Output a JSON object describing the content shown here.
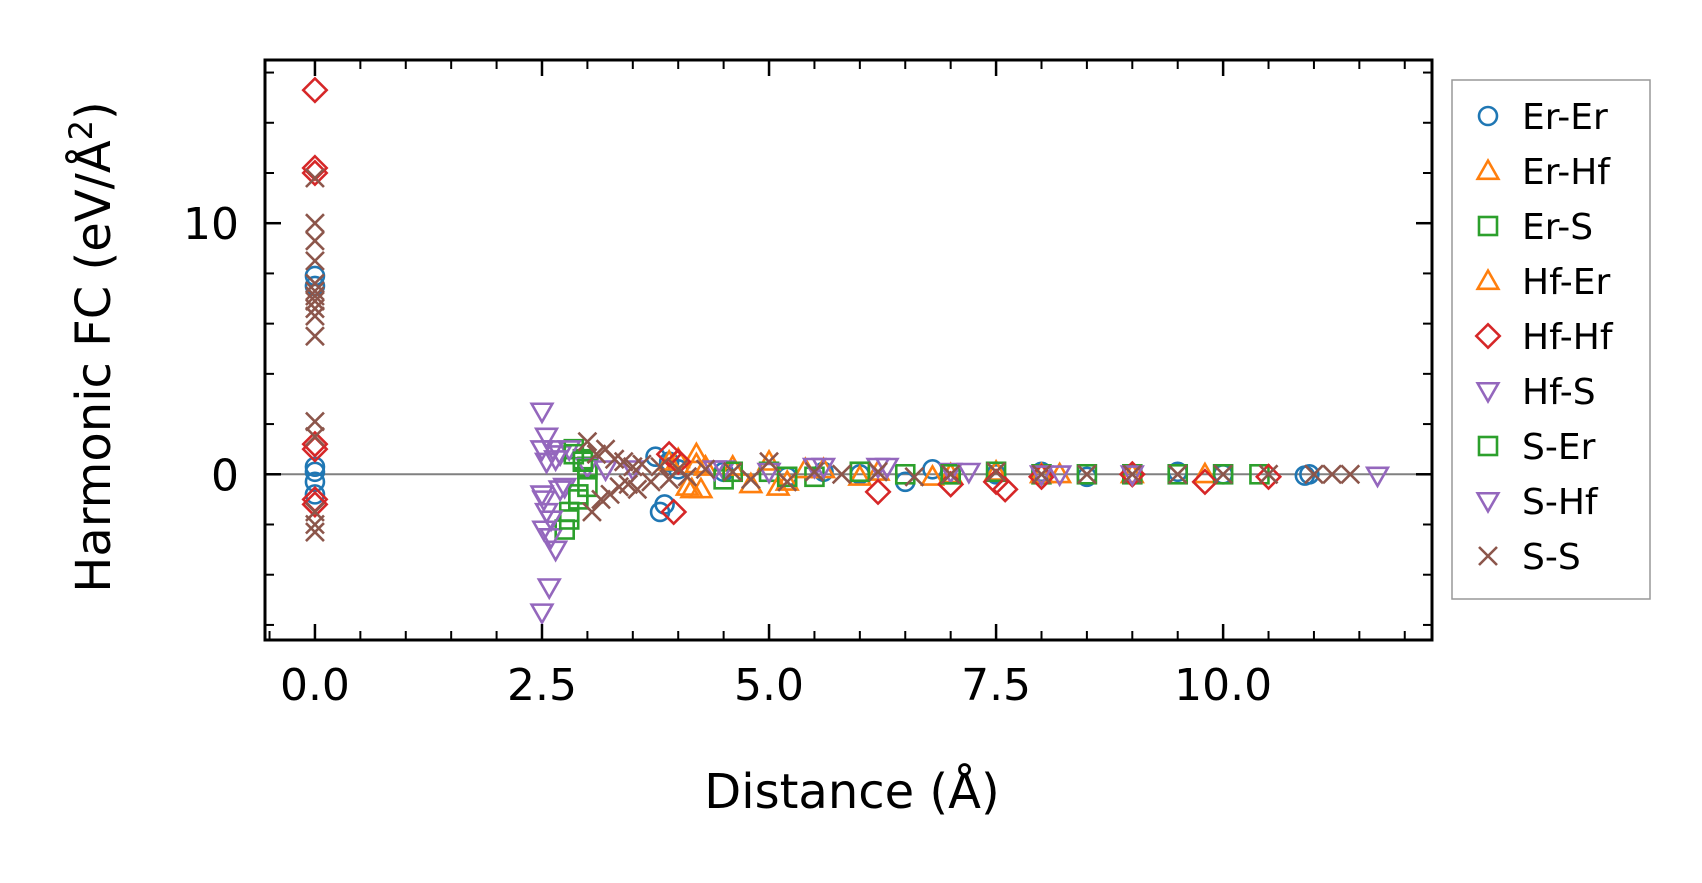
{
  "chart_data": {
    "type": "scatter",
    "title": "",
    "xlabel": "Distance (Å)",
    "ylabel_main": "Harmonic FC (eV/Å",
    "ylabel_sup": "2",
    "ylabel_close": ")",
    "xlim": [
      -0.55,
      12.3
    ],
    "ylim": [
      -6.6,
      16.5
    ],
    "xticks": [
      0.0,
      2.5,
      5.0,
      7.5,
      10.0
    ],
    "xtick_labels": [
      "0.0",
      "2.5",
      "5.0",
      "7.5",
      "10.0"
    ],
    "yticks": [
      0,
      10
    ],
    "ytick_labels": [
      "0",
      "10"
    ],
    "x_minor_step": 0.5,
    "y_minor_step": 2,
    "zero_line": true,
    "grid": false,
    "legend_position": "outside-right",
    "series": [
      {
        "name": "Er-Er",
        "marker": "circle",
        "color": "#1f77b4",
        "x": [
          0.0,
          0.0,
          0.0,
          0.0,
          0.0,
          0.0,
          3.75,
          3.8,
          3.85,
          3.9,
          4.0,
          4.5,
          5.2,
          5.6,
          6.0,
          6.5,
          6.8,
          7.5,
          8.0,
          8.5,
          9.0,
          9.5,
          10.0,
          10.9,
          10.95
        ],
        "y": [
          7.9,
          7.5,
          0.3,
          0.1,
          -0.3,
          -0.8,
          0.7,
          -1.5,
          -1.2,
          0.5,
          0.2,
          0.1,
          -0.1,
          0.1,
          0.0,
          -0.3,
          0.2,
          0.0,
          0.1,
          -0.1,
          0.0,
          0.1,
          0.0,
          -0.05,
          0.0
        ]
      },
      {
        "name": "Er-Hf",
        "marker": "triangle-up",
        "color": "#ff7f0e",
        "x": [
          3.9,
          4.0,
          4.1,
          4.2,
          4.25,
          4.3,
          4.8,
          5.0,
          5.2,
          5.6,
          6.2,
          6.8,
          7.5,
          8.2,
          9.0,
          9.8
        ],
        "y": [
          0.5,
          0.6,
          -0.5,
          0.8,
          -0.6,
          0.3,
          -0.4,
          0.5,
          -0.3,
          0.2,
          0.1,
          -0.1,
          0.1,
          0.0,
          0.0,
          0.0
        ]
      },
      {
        "name": "Er-S",
        "marker": "square",
        "color": "#2ca02c",
        "x": [
          2.75,
          2.8,
          2.85,
          2.9,
          2.95,
          3.0,
          3.0,
          4.5,
          5.0,
          5.5,
          6.0,
          6.5,
          7.0,
          7.5,
          8.0,
          9.0,
          10.0,
          10.4
        ],
        "y": [
          -2.2,
          -1.5,
          1.0,
          -1.0,
          0.6,
          -0.5,
          0.3,
          -0.2,
          0.1,
          -0.1,
          0.1,
          0.0,
          0.0,
          0.1,
          0.0,
          0.0,
          0.0,
          0.0
        ]
      },
      {
        "name": "Hf-Er",
        "marker": "triangle-up",
        "color": "#ff7f0e",
        "x": [
          4.15,
          4.2,
          4.6,
          5.1,
          5.4,
          6.0,
          7.0,
          8.0
        ],
        "y": [
          -0.6,
          0.4,
          0.3,
          -0.5,
          0.2,
          -0.1,
          0.0,
          0.0
        ]
      },
      {
        "name": "Hf-Hf",
        "marker": "diamond",
        "color": "#d62728",
        "x": [
          0.0,
          0.0,
          0.0,
          0.0,
          0.0,
          0.0,
          0.0,
          3.9,
          3.95,
          4.0,
          6.2,
          7.0,
          7.5,
          7.6,
          8.0,
          9.0,
          9.8,
          10.5
        ],
        "y": [
          15.3,
          12.2,
          12.0,
          1.2,
          1.0,
          -1.0,
          -1.2,
          0.8,
          -1.5,
          0.5,
          -0.7,
          -0.4,
          -0.3,
          -0.6,
          -0.1,
          0.0,
          -0.3,
          -0.1
        ]
      },
      {
        "name": "Hf-S",
        "marker": "triangle-down",
        "color": "#9467bd",
        "x": [
          2.5,
          2.5,
          2.5,
          2.52,
          2.52,
          2.55,
          2.55,
          2.58,
          2.6,
          2.62,
          2.65,
          2.7,
          2.75,
          2.8,
          3.0,
          3.5,
          4.5,
          5.0,
          5.5,
          6.2,
          7.0,
          8.0,
          9.0,
          11.7
        ],
        "y": [
          -5.5,
          2.5,
          1.0,
          -1.0,
          -2.2,
          0.5,
          -1.5,
          -4.5,
          -2.5,
          1.0,
          -3.0,
          0.8,
          -0.5,
          1.0,
          0.3,
          0.2,
          0.2,
          0.1,
          0.3,
          0.3,
          0.1,
          0.0,
          0.0,
          -0.05
        ]
      },
      {
        "name": "S-Er",
        "marker": "square",
        "color": "#2ca02c",
        "x": [
          2.8,
          2.85,
          2.9,
          2.95,
          3.0,
          4.6,
          5.2,
          6.0,
          7.0,
          8.5,
          9.5
        ],
        "y": [
          -1.8,
          0.8,
          -0.8,
          0.5,
          0.2,
          0.1,
          -0.1,
          0.1,
          0.0,
          0.0,
          0.0
        ]
      },
      {
        "name": "S-Hf",
        "marker": "triangle-down",
        "color": "#9467bd",
        "x": [
          2.5,
          2.55,
          2.6,
          2.65,
          2.7,
          3.2,
          4.4,
          5.6,
          6.3,
          7.2,
          8.2
        ],
        "y": [
          -0.8,
          1.5,
          -1.8,
          0.6,
          -0.6,
          0.2,
          0.2,
          0.3,
          0.3,
          0.1,
          0.0
        ]
      },
      {
        "name": "S-S",
        "marker": "x",
        "color": "#8c564b",
        "x": [
          0.0,
          0.0,
          0.0,
          0.0,
          0.0,
          0.0,
          0.0,
          0.0,
          0.0,
          0.0,
          0.0,
          0.0,
          0.0,
          0.0,
          0.0,
          0.0,
          3.0,
          3.05,
          3.1,
          3.15,
          3.2,
          3.25,
          3.3,
          3.35,
          3.4,
          3.45,
          3.5,
          3.55,
          3.6,
          3.7,
          3.8,
          3.9,
          4.0,
          4.1,
          4.3,
          4.6,
          4.8,
          5.0,
          5.2,
          5.5,
          5.8,
          6.2,
          6.6,
          7.0,
          7.5,
          8.0,
          8.5,
          9.0,
          9.5,
          10.0,
          10.5,
          11.0,
          11.2,
          11.4
        ],
        "y": [
          11.8,
          10.0,
          9.3,
          8.5,
          7.6,
          7.3,
          7.1,
          6.9,
          6.6,
          6.3,
          5.5,
          2.1,
          1.5,
          -1.5,
          -2.0,
          -2.3,
          1.3,
          -1.5,
          0.8,
          -1.0,
          1.0,
          -0.8,
          0.6,
          -0.5,
          0.5,
          -0.4,
          0.3,
          -0.6,
          0.4,
          -0.3,
          0.3,
          -0.2,
          0.2,
          -0.1,
          0.2,
          0.1,
          -0.2,
          0.5,
          -0.3,
          0.1,
          0.0,
          0.1,
          -0.1,
          0.0,
          0.1,
          0.0,
          0.0,
          0.0,
          0.0,
          0.0,
          0.0,
          0.0,
          0.0,
          0.0
        ]
      }
    ]
  }
}
